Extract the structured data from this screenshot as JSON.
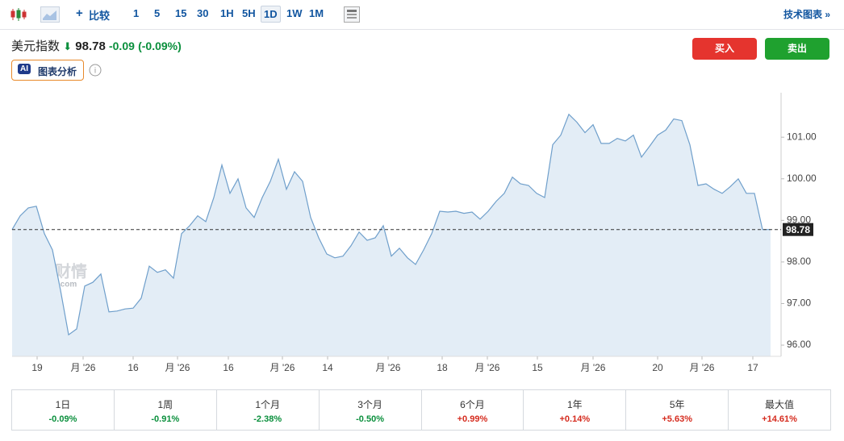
{
  "toolbar": {
    "compare": "比较",
    "intervals": [
      "1",
      "5",
      "15",
      "30",
      "1H",
      "5H",
      "1D",
      "1W",
      "1M"
    ],
    "active_interval": "1D",
    "tech_chart": "技术图表 »"
  },
  "header": {
    "name": "美元指数",
    "price": 98.78,
    "change": -0.09,
    "change_pct": "(-0.09%)",
    "ai_badge": "AI",
    "ai_label": "图表分析",
    "buy": "买入",
    "sell": "卖出"
  },
  "chart_data": {
    "type": "line",
    "color": "#6f9fcb",
    "fill": "#e3edf6",
    "values": [
      98.78,
      99.11,
      99.3,
      99.34,
      98.68,
      98.29,
      97.32,
      96.25,
      96.39,
      97.42,
      97.51,
      97.71,
      96.8,
      96.82,
      96.87,
      96.89,
      97.13,
      97.9,
      97.75,
      97.81,
      97.61,
      98.68,
      98.87,
      99.11,
      98.97,
      99.55,
      100.33,
      99.65,
      100.0,
      99.3,
      99.07,
      99.55,
      99.94,
      100.47,
      99.75,
      100.17,
      99.94,
      99.07,
      98.58,
      98.19,
      98.1,
      98.14,
      98.39,
      98.72,
      98.52,
      98.58,
      98.87,
      98.14,
      98.33,
      98.1,
      97.94,
      98.29,
      98.68,
      99.22,
      99.2,
      99.22,
      99.17,
      99.2,
      99.03,
      99.22,
      99.46,
      99.65,
      100.04,
      99.88,
      99.84,
      99.65,
      99.55,
      100.82,
      101.05,
      101.55,
      101.36,
      101.11,
      101.3,
      100.85,
      100.85,
      100.97,
      100.91,
      101.05,
      100.52,
      100.78,
      101.05,
      101.17,
      101.44,
      101.4,
      100.82,
      99.84,
      99.88,
      99.75,
      99.65,
      99.81,
      100.0,
      99.65,
      99.65,
      98.78,
      98.78
    ],
    "xlim": [
      0,
      95.3
    ],
    "xticks": [
      {
        "value": 3.1,
        "label": "19"
      },
      {
        "value": 8.8,
        "label": "月 '26"
      },
      {
        "value": 15,
        "label": "16"
      },
      {
        "value": 20.5,
        "label": "月 '26"
      },
      {
        "value": 26.8,
        "label": "16"
      },
      {
        "value": 33.5,
        "label": "月 '26"
      },
      {
        "value": 39.1,
        "label": "14"
      },
      {
        "value": 46.6,
        "label": "月 '26"
      },
      {
        "value": 53.3,
        "label": "18"
      },
      {
        "value": 58.9,
        "label": "月 '26"
      },
      {
        "value": 65.1,
        "label": "15"
      },
      {
        "value": 72,
        "label": "月 '26"
      },
      {
        "value": 80,
        "label": "20"
      },
      {
        "value": 85.5,
        "label": "月 '26"
      },
      {
        "value": 91.8,
        "label": "17"
      }
    ],
    "ylim": [
      95.73,
      102.07
    ],
    "yticks": [
      {
        "value": 96,
        "label": "96.00"
      },
      {
        "value": 97,
        "label": "97.00"
      },
      {
        "value": 98,
        "label": "98.00"
      },
      {
        "value": 99,
        "label": "99.00"
      },
      {
        "value": 100,
        "label": "100.00"
      },
      {
        "value": 101,
        "label": "101.00"
      }
    ],
    "last_price": 98.78,
    "watermark": "英为财情",
    "watermark_sub": "Investing.com"
  },
  "periods": [
    {
      "label": "1日",
      "change": "-0.09%"
    },
    {
      "label": "1周",
      "change": "-0.91%"
    },
    {
      "label": "1个月",
      "change": "-2.38%"
    },
    {
      "label": "3个月",
      "change": "-0.50%"
    },
    {
      "label": "6个月",
      "change": "+0.99%"
    },
    {
      "label": "1年",
      "change": "+0.14%"
    },
    {
      "label": "5年",
      "change": "+5.63%"
    },
    {
      "label": "最大值",
      "change": "+14.61%"
    }
  ]
}
